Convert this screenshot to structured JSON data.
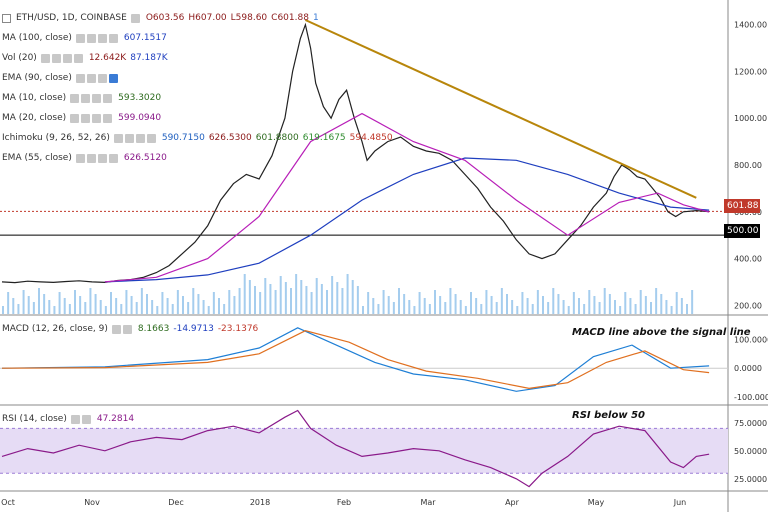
{
  "header": {
    "symbol": "ETH/USD, 1D, COINBASE",
    "open": "O603.56",
    "high": "H607.00",
    "low": "L598.60",
    "close": "C601.88",
    "compare_count": "1"
  },
  "legend": [
    {
      "id": "ma100",
      "label": "MA (100, close)",
      "values": [
        "607.1517"
      ],
      "colors": [
        "#1f3fbf"
      ]
    },
    {
      "id": "vol",
      "label": "Vol (20)",
      "values": [
        "12.642K",
        "87.187K"
      ],
      "colors": [
        "#8b1a1a",
        "#1f3fbf"
      ]
    },
    {
      "id": "ema90",
      "label": "EMA (90, close)",
      "values": [],
      "colors": []
    },
    {
      "id": "ma10",
      "label": "MA (10, close)",
      "values": [
        "593.3020"
      ],
      "colors": [
        "#2e6b1f"
      ]
    },
    {
      "id": "ma20",
      "label": "MA (20, close)",
      "values": [
        "599.0940"
      ],
      "colors": [
        "#8a1a8a"
      ]
    },
    {
      "id": "ichimoku",
      "label": "Ichimoku (9, 26, 52, 26)",
      "values": [
        "590.7150",
        "626.5300",
        "601.8800",
        "619.1675",
        "594.4850"
      ],
      "colors": [
        "#1f5fbf",
        "#8b1a1a",
        "#2e6b1f",
        "#2e8b2e",
        "#c0392b"
      ]
    },
    {
      "id": "ema55",
      "label": "EMA (55, close)",
      "values": [
        "626.5120"
      ],
      "colors": [
        "#8a1a8a"
      ]
    }
  ],
  "macd_legend": {
    "label": "MACD (12, 26, close, 9)",
    "values": [
      "8.1663",
      "-14.9713",
      "-23.1376"
    ],
    "colors": [
      "#2e6b1f",
      "#1f3fbf",
      "#c0392b"
    ]
  },
  "rsi_legend": {
    "label": "RSI (14, close)",
    "values": [
      "47.2814"
    ],
    "colors": [
      "#8a1a8a"
    ]
  },
  "annotations": {
    "macd": "MACD line above the signal line",
    "rsi": "RSI below 50"
  },
  "price_labels": {
    "last": "601.88",
    "level": "500.00"
  },
  "colors": {
    "trendline": "#b8860b",
    "last_price": "#c0392b",
    "rsi_band": "#e6dcf5",
    "cloud_green": "#b9e3b0",
    "cloud_red": "#f6c9c4",
    "volume": "#8ec1ea"
  },
  "chart_data": [
    {
      "type": "line",
      "title": "ETH/USD, 1D, COINBASE",
      "x_ticks": [
        "Oct",
        "Nov",
        "Dec",
        "2018",
        "Feb",
        "Mar",
        "Apr",
        "May",
        "Jun"
      ],
      "y_ticks": [
        "1400.00",
        "1200.00",
        "1000.00",
        "800.00",
        "600.00",
        "400.00",
        "200.00"
      ],
      "ylim": [
        180,
        1480
      ],
      "series": [
        {
          "name": "Price",
          "points": [
            [
              0,
              300
            ],
            [
              5,
              297
            ],
            [
              10,
              303
            ],
            [
              15,
              300
            ],
            [
              20,
              298
            ],
            [
              25,
              302
            ],
            [
              30,
              305
            ],
            [
              35,
              300
            ],
            [
              40,
              298
            ],
            [
              45,
              306
            ],
            [
              50,
              310
            ],
            [
              55,
              320
            ],
            [
              60,
              340
            ],
            [
              65,
              370
            ],
            [
              70,
              420
            ],
            [
              75,
              470
            ],
            [
              80,
              540
            ],
            [
              85,
              650
            ],
            [
              90,
              720
            ],
            [
              95,
              760
            ],
            [
              100,
              740
            ],
            [
              105,
              840
            ],
            [
              110,
              1000
            ],
            [
              113,
              1200
            ],
            [
              116,
              1340
            ],
            [
              118,
              1400
            ],
            [
              120,
              1300
            ],
            [
              122,
              1150
            ],
            [
              125,
              1050
            ],
            [
              128,
              1000
            ],
            [
              131,
              1080
            ],
            [
              134,
              1120
            ],
            [
              137,
              1000
            ],
            [
              140,
              900
            ],
            [
              142,
              820
            ],
            [
              145,
              860
            ],
            [
              150,
              900
            ],
            [
              155,
              920
            ],
            [
              160,
              880
            ],
            [
              165,
              860
            ],
            [
              170,
              850
            ],
            [
              175,
              820
            ],
            [
              180,
              760
            ],
            [
              185,
              700
            ],
            [
              190,
              620
            ],
            [
              195,
              560
            ],
            [
              200,
              480
            ],
            [
              205,
              420
            ],
            [
              210,
              400
            ],
            [
              215,
              420
            ],
            [
              220,
              480
            ],
            [
              225,
              540
            ],
            [
              230,
              620
            ],
            [
              235,
              680
            ],
            [
              238,
              750
            ],
            [
              241,
              800
            ],
            [
              244,
              780
            ],
            [
              247,
              750
            ],
            [
              250,
              740
            ],
            [
              253,
              700
            ],
            [
              256,
              660
            ],
            [
              259,
              600
            ],
            [
              262,
              580
            ],
            [
              265,
              600
            ],
            [
              270,
              605
            ],
            [
              275,
              601
            ]
          ]
        },
        {
          "name": "MA (100, close)",
          "points": [
            [
              40,
              300
            ],
            [
              60,
              310
            ],
            [
              80,
              330
            ],
            [
              100,
              380
            ],
            [
              120,
              500
            ],
            [
              140,
              650
            ],
            [
              160,
              760
            ],
            [
              180,
              830
            ],
            [
              200,
              820
            ],
            [
              220,
              760
            ],
            [
              240,
              680
            ],
            [
              260,
              620
            ],
            [
              275,
              607
            ]
          ]
        },
        {
          "name": "MA (20, close)",
          "points": [
            [
              40,
              300
            ],
            [
              60,
              320
            ],
            [
              80,
              400
            ],
            [
              100,
              580
            ],
            [
              120,
              900
            ],
            [
              140,
              1020
            ],
            [
              160,
              900
            ],
            [
              180,
              820
            ],
            [
              200,
              650
            ],
            [
              220,
              500
            ],
            [
              240,
              640
            ],
            [
              255,
              680
            ],
            [
              265,
              630
            ],
            [
              275,
              599
            ]
          ]
        },
        {
          "name": "Trendline",
          "points": [
            [
              118,
              1420
            ],
            [
              270,
              660
            ]
          ]
        }
      ],
      "horizontal_lines": [
        {
          "value": 601.88
        },
        {
          "value": 500
        }
      ]
    },
    {
      "type": "line",
      "title": "MACD (12, 26, close, 9)",
      "y_ticks": [
        "100.0000",
        "0.0000",
        "-100.0000"
      ],
      "ylim": [
        -110,
        160
      ],
      "series": [
        {
          "name": "MACD",
          "points": [
            [
              0,
              0
            ],
            [
              40,
              5
            ],
            [
              80,
              30
            ],
            [
              100,
              70
            ],
            [
              115,
              140
            ],
            [
              130,
              80
            ],
            [
              145,
              20
            ],
            [
              160,
              -20
            ],
            [
              180,
              -40
            ],
            [
              200,
              -80
            ],
            [
              215,
              -60
            ],
            [
              230,
              40
            ],
            [
              245,
              80
            ],
            [
              260,
              0
            ],
            [
              275,
              8
            ]
          ]
        },
        {
          "name": "Signal",
          "points": [
            [
              0,
              0
            ],
            [
              40,
              2
            ],
            [
              80,
              20
            ],
            [
              100,
              50
            ],
            [
              118,
              130
            ],
            [
              135,
              90
            ],
            [
              150,
              30
            ],
            [
              165,
              -10
            ],
            [
              185,
              -35
            ],
            [
              205,
              -70
            ],
            [
              220,
              -50
            ],
            [
              235,
              20
            ],
            [
              250,
              60
            ],
            [
              265,
              -5
            ],
            [
              275,
              -15
            ]
          ]
        }
      ]
    },
    {
      "type": "line",
      "title": "RSI (14, close)",
      "y_ticks": [
        "75.0000",
        "50.0000",
        "25.0000"
      ],
      "ylim": [
        15,
        90
      ],
      "series": [
        {
          "name": "RSI",
          "points": [
            [
              0,
              45
            ],
            [
              10,
              52
            ],
            [
              20,
              48
            ],
            [
              30,
              55
            ],
            [
              40,
              50
            ],
            [
              50,
              58
            ],
            [
              60,
              62
            ],
            [
              70,
              60
            ],
            [
              80,
              68
            ],
            [
              90,
              72
            ],
            [
              100,
              66
            ],
            [
              110,
              80
            ],
            [
              115,
              86
            ],
            [
              120,
              70
            ],
            [
              130,
              55
            ],
            [
              140,
              45
            ],
            [
              150,
              48
            ],
            [
              160,
              52
            ],
            [
              170,
              50
            ],
            [
              180,
              42
            ],
            [
              190,
              35
            ],
            [
              200,
              25
            ],
            [
              205,
              18
            ],
            [
              210,
              30
            ],
            [
              220,
              45
            ],
            [
              230,
              65
            ],
            [
              240,
              72
            ],
            [
              250,
              68
            ],
            [
              260,
              40
            ],
            [
              265,
              35
            ],
            [
              270,
              45
            ],
            [
              275,
              47
            ]
          ]
        }
      ]
    }
  ]
}
